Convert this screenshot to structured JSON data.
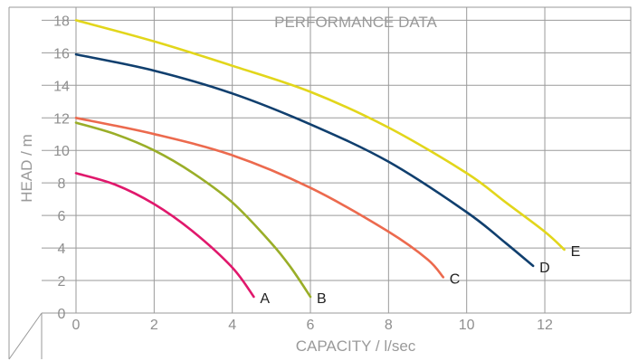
{
  "chart_data": {
    "type": "line",
    "title": "PERFORMANCE DATA",
    "xlabel": "CAPACITY / l/sec",
    "ylabel": "HEAD / m",
    "xlim": [
      0,
      14.2
    ],
    "ylim": [
      0,
      18.8
    ],
    "x_ticks": [
      0,
      2,
      4,
      6,
      8,
      10,
      12
    ],
    "y_ticks": [
      0,
      2,
      4,
      6,
      8,
      10,
      12,
      14,
      16,
      18
    ],
    "grid": true,
    "series": [
      {
        "name": "A",
        "color": "#e0186c",
        "points": [
          [
            0,
            8.6
          ],
          [
            1,
            7.9
          ],
          [
            2,
            6.7
          ],
          [
            3,
            5.0
          ],
          [
            4,
            2.8
          ],
          [
            4.55,
            1.0
          ]
        ]
      },
      {
        "name": "B",
        "color": "#9aae28",
        "points": [
          [
            0,
            11.7
          ],
          [
            1,
            11.0
          ],
          [
            2,
            10.0
          ],
          [
            3,
            8.6
          ],
          [
            4,
            6.8
          ],
          [
            5,
            4.3
          ],
          [
            5.5,
            2.8
          ],
          [
            6,
            1.0
          ]
        ]
      },
      {
        "name": "C",
        "color": "#ec6a4e",
        "points": [
          [
            0,
            12.0
          ],
          [
            2,
            11.0
          ],
          [
            4,
            9.7
          ],
          [
            6,
            7.7
          ],
          [
            8,
            5.0
          ],
          [
            9,
            3.3
          ],
          [
            9.4,
            2.2
          ]
        ]
      },
      {
        "name": "D",
        "color": "#103f6e",
        "points": [
          [
            0,
            15.9
          ],
          [
            2,
            14.9
          ],
          [
            4,
            13.5
          ],
          [
            6,
            11.6
          ],
          [
            8,
            9.3
          ],
          [
            10,
            6.2
          ],
          [
            11,
            4.3
          ],
          [
            11.7,
            2.9
          ]
        ]
      },
      {
        "name": "E",
        "color": "#e2d61b",
        "points": [
          [
            0,
            18.0
          ],
          [
            2,
            16.7
          ],
          [
            4,
            15.2
          ],
          [
            6,
            13.6
          ],
          [
            8,
            11.4
          ],
          [
            10,
            8.6
          ],
          [
            11,
            6.8
          ],
          [
            12,
            5.0
          ],
          [
            12.5,
            3.9
          ]
        ]
      }
    ]
  }
}
